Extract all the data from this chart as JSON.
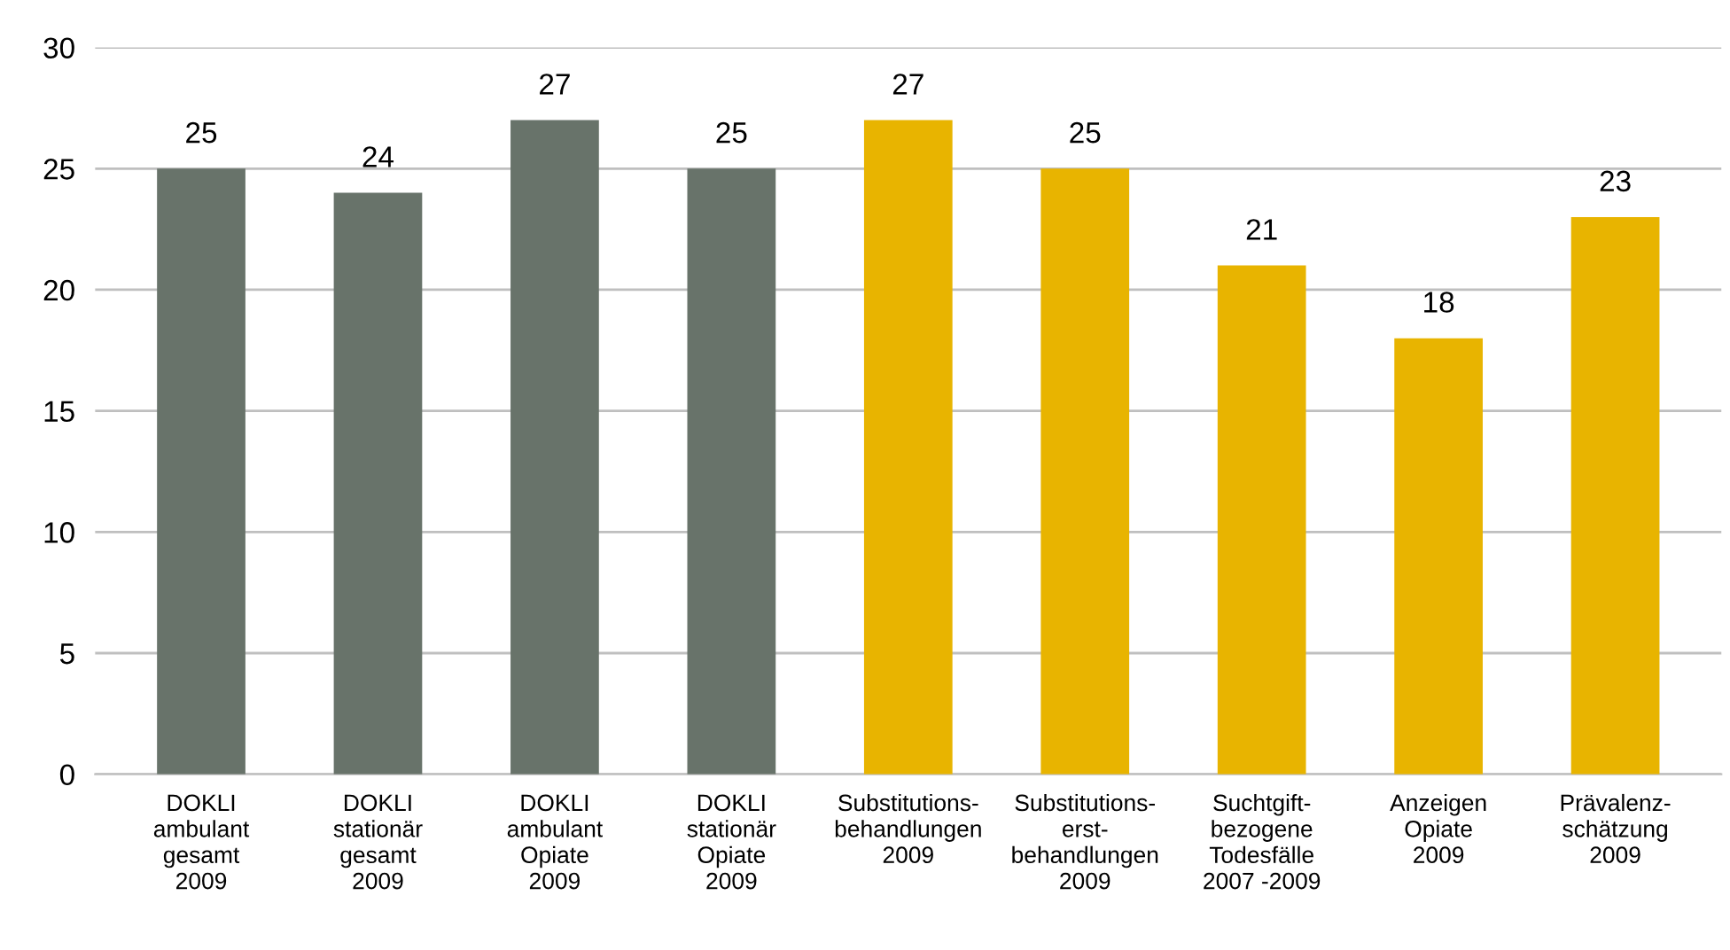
{
  "chart_data": {
    "type": "bar",
    "categories": [
      "DOKLI\nambulant\ngesamt\n2009",
      "DOKLI\nstationär\ngesamt\n2009",
      "DOKLI\nambulant\nOpiate\n2009",
      "DOKLI\nstationär\nOpiate\n2009",
      "Substitutions-\nbehandlungen\n2009",
      "Substitutions-\nerst-\nbehandlungen\n2009",
      "Suchtgift-\nbezogene\nTodesfälle\n2007 -2009",
      "Anzeigen\nOpiate\n2009",
      "Prävalenz-\nschätzung\n2009"
    ],
    "values": [
      25,
      24,
      27,
      25,
      27,
      25,
      21,
      18,
      23
    ],
    "colors": [
      "#68736a",
      "#68736a",
      "#68736a",
      "#68736a",
      "#e8b400",
      "#e8b400",
      "#e8b400",
      "#e8b400",
      "#e8b400"
    ],
    "data_labels": true,
    "ylim": [
      0,
      30
    ],
    "yticks": [
      0,
      5,
      10,
      15,
      20,
      25,
      30
    ],
    "grid": "y"
  }
}
